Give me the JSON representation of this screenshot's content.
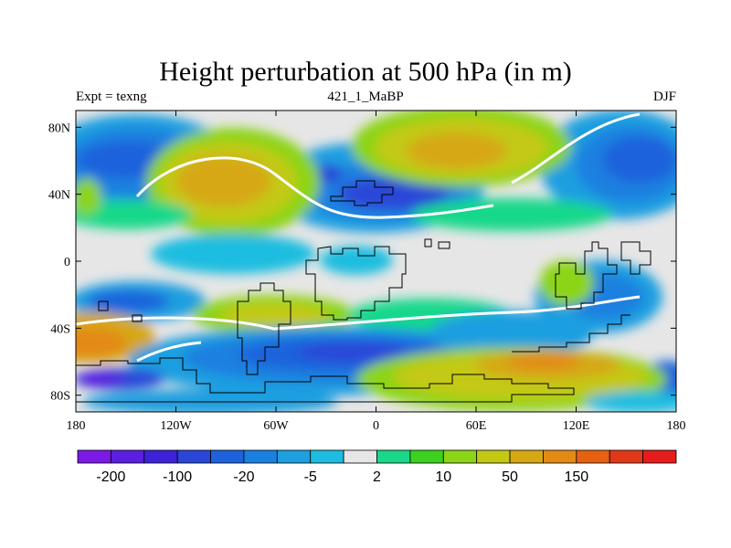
{
  "title": "Height perturbation at 500 hPa (in m)",
  "subtitle_left": "Expt = texng",
  "subtitle_center": "421_1_MaBP",
  "subtitle_right": "DJF",
  "axes": {
    "lat_ticks": [
      {
        "label": "80N",
        "value": 80
      },
      {
        "label": "40N",
        "value": 40
      },
      {
        "label": "0",
        "value": 0
      },
      {
        "label": "40S",
        "value": -40
      },
      {
        "label": "80S",
        "value": -80
      }
    ],
    "lon_ticks": [
      {
        "label": "180",
        "value": -180
      },
      {
        "label": "120W",
        "value": -120
      },
      {
        "label": "60W",
        "value": -60
      },
      {
        "label": "0",
        "value": 0
      },
      {
        "label": "60E",
        "value": 60
      },
      {
        "label": "120E",
        "value": 120
      },
      {
        "label": "180",
        "value": 180
      }
    ]
  },
  "colorbar": {
    "colors": [
      "#7d19e6",
      "#5a1fe0",
      "#3c23d9",
      "#2a46d8",
      "#1d62dc",
      "#1a80e0",
      "#1d9fe0",
      "#1cbde0",
      "#e6e6e6",
      "#19d88a",
      "#3cd11e",
      "#8cd416",
      "#c3c912",
      "#d6a813",
      "#e38a14",
      "#e66112",
      "#e2381a",
      "#e61c1c"
    ],
    "labels": [
      {
        "text": "-200",
        "boundary": 1
      },
      {
        "text": "-100",
        "boundary": 3
      },
      {
        "text": "-20",
        "boundary": 5
      },
      {
        "text": "-5",
        "boundary": 7
      },
      {
        "text": "2",
        "boundary": 9
      },
      {
        "text": "10",
        "boundary": 11
      },
      {
        "text": "50",
        "boundary": 13
      },
      {
        "text": "150",
        "boundary": 15
      }
    ]
  },
  "colors": {
    "neutral": "#e6e6e6",
    "coast": "#000000"
  }
}
